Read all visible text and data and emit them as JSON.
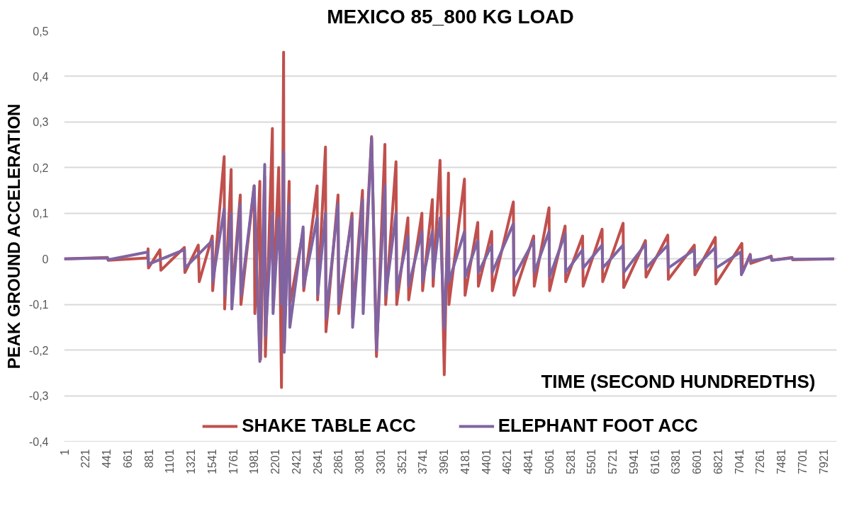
{
  "chart_data": {
    "type": "line",
    "title": "MEXICO 85_800 KG LOAD",
    "xlabel": "TIME (SECOND HUNDREDTHS)",
    "ylabel": "PEAK GROUND ACCELERATION",
    "xlim": [
      0.5,
      8060
    ],
    "xticks": [
      1,
      221,
      441,
      661,
      881,
      1101,
      1321,
      1541,
      1761,
      1981,
      2201,
      2421,
      2641,
      2861,
      3081,
      3301,
      3521,
      3741,
      3961,
      4181,
      4401,
      4621,
      4841,
      5061,
      5281,
      5501,
      5721,
      5941,
      6161,
      6381,
      6601,
      6821,
      7041,
      7261,
      7481,
      7701,
      7921
    ],
    "ylim": [
      -0.4,
      0.5
    ],
    "yticks": [
      {
        "value": -0.4,
        "label": "-0,4"
      },
      {
        "value": -0.3,
        "label": "-0,3"
      },
      {
        "value": -0.2,
        "label": "-0,2"
      },
      {
        "value": -0.1,
        "label": "-0,1"
      },
      {
        "value": 0,
        "label": "0"
      },
      {
        "value": 0.1,
        "label": "0,1"
      },
      {
        "value": 0.2,
        "label": "0,2"
      },
      {
        "value": 0.3,
        "label": "0,3"
      },
      {
        "value": 0.4,
        "label": "0,4"
      },
      {
        "value": 0.5,
        "label": "0,5"
      }
    ],
    "grid": "y",
    "legend": "bottom",
    "line_style": "solid",
    "marker": "none",
    "series": [
      {
        "name": "SHAKE TABLE ACC",
        "color": "#c0504d",
        "x": [
          1,
          453,
          460,
          870,
          876,
          880,
          1000,
          1010,
          1255,
          1260,
          1400,
          1410,
          1546,
          1550,
          1670,
          1675,
          1743,
          1750,
          1838,
          1845,
          1983,
          1990,
          2042,
          2050,
          2093,
          2100,
          2173,
          2180,
          2239,
          2268,
          2290,
          2296,
          2348,
          2355,
          2494,
          2500,
          2640,
          2645,
          2727,
          2732,
          2858,
          2865,
          3004,
          3010,
          3113,
          3120,
          3208,
          3259,
          3347,
          3355,
          3463,
          3470,
          3587,
          3595,
          3733,
          3740,
          3842,
          3850,
          3922,
          3966,
          4010,
          4015,
          4177,
          4183,
          4316,
          4322,
          4461,
          4467,
          4687,
          4693,
          4899,
          4905,
          5059,
          5065,
          5227,
          5233,
          5409,
          5415,
          5613,
          5619,
          5832,
          5838,
          6065,
          6071,
          6298,
          6304,
          6575,
          6581,
          6794,
          6800,
          7071,
          7077,
          7158,
          7164,
          7377,
          7383,
          7595,
          7601,
          8033
        ],
        "values": [
          0,
          0.003,
          -0.003,
          0.002,
          0.022,
          -0.02,
          0.02,
          -0.025,
          0.025,
          -0.03,
          0.03,
          -0.05,
          0.05,
          -0.07,
          0.224,
          -0.11,
          0.196,
          -0.09,
          0.14,
          -0.1,
          0.16,
          -0.12,
          0.17,
          -0.22,
          0.18,
          -0.214,
          0.286,
          -0.09,
          0.2,
          -0.282,
          0.453,
          -0.2,
          0.17,
          -0.1,
          0.06,
          -0.07,
          0.16,
          -0.09,
          0.245,
          -0.16,
          0.14,
          -0.12,
          0.1,
          -0.13,
          0.15,
          -0.08,
          0.268,
          -0.214,
          0.251,
          -0.1,
          0.213,
          -0.1,
          0.09,
          -0.09,
          0.1,
          -0.07,
          0.13,
          -0.06,
          0.216,
          -0.254,
          0.188,
          -0.1,
          0.175,
          -0.08,
          0.08,
          -0.06,
          0.06,
          -0.07,
          0.125,
          -0.08,
          0.05,
          -0.06,
          0.112,
          -0.07,
          0.072,
          -0.05,
          0.05,
          -0.06,
          0.065,
          -0.05,
          0.078,
          -0.063,
          0.04,
          -0.04,
          0.052,
          -0.045,
          0.03,
          -0.035,
          0.047,
          -0.055,
          0.034,
          -0.03,
          0.01,
          -0.01,
          0.006,
          -0.003,
          0.003,
          -0.002,
          0
        ]
      },
      {
        "name": "ELEPHANT FOOT ACC",
        "color": "#8064a2",
        "x": [
          1,
          453,
          460,
          876,
          880,
          1255,
          1260,
          1546,
          1550,
          1670,
          1675,
          1743,
          1750,
          1838,
          1845,
          1983,
          2042,
          2093,
          2100,
          2173,
          2180,
          2239,
          2268,
          2290,
          2296,
          2348,
          2355,
          2494,
          2500,
          2640,
          2645,
          2727,
          2732,
          2858,
          2865,
          3004,
          3010,
          3113,
          3120,
          3208,
          3259,
          3347,
          3355,
          3463,
          3470,
          3587,
          3595,
          3733,
          3740,
          3842,
          3850,
          3922,
          3966,
          4010,
          4015,
          4177,
          4183,
          4316,
          4322,
          4461,
          4467,
          4687,
          4693,
          4899,
          4905,
          5059,
          5065,
          5227,
          5233,
          5409,
          5415,
          5613,
          5619,
          5832,
          5838,
          6065,
          6071,
          6298,
          6304,
          6575,
          6581,
          6794,
          6800,
          7060,
          7066,
          7158,
          7164,
          7377,
          7383,
          7595,
          7601,
          8033
        ],
        "values": [
          0,
          0.002,
          -0.002,
          0.015,
          -0.012,
          0.02,
          -0.02,
          0.04,
          -0.05,
          0.11,
          -0.08,
          0.1,
          -0.11,
          0.12,
          -0.08,
          0.16,
          -0.225,
          0.207,
          -0.17,
          0.1,
          -0.12,
          0.09,
          -0.1,
          0.234,
          -0.205,
          0.12,
          -0.15,
          0.07,
          -0.06,
          0.09,
          -0.08,
          0.1,
          -0.13,
          0.12,
          -0.1,
          0.09,
          -0.15,
          0.13,
          -0.12,
          0.265,
          -0.2,
          0.16,
          -0.08,
          0.1,
          -0.07,
          0.05,
          -0.06,
          0.06,
          -0.05,
          0.06,
          -0.04,
          0.09,
          -0.153,
          0.09,
          -0.05,
          0.06,
          -0.04,
          0.04,
          -0.03,
          0.03,
          -0.03,
          0.077,
          -0.04,
          0.04,
          -0.03,
          0.06,
          -0.04,
          0.055,
          -0.03,
          0.02,
          -0.02,
          0.03,
          -0.02,
          0.03,
          -0.03,
          0.032,
          -0.02,
          0.03,
          -0.02,
          0.02,
          -0.02,
          0.025,
          -0.02,
          0.015,
          -0.035,
          0.008,
          -0.005,
          0.004,
          -0.003,
          0.002,
          -0.001,
          0
        ]
      }
    ]
  }
}
